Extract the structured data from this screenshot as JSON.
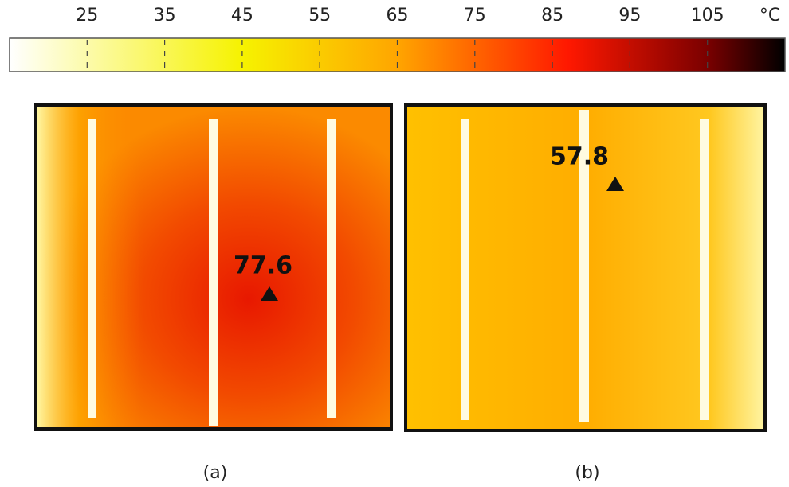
{
  "colorbar": {
    "unit": "°C",
    "range": [
      15,
      115
    ],
    "ticks": [
      25,
      35,
      45,
      55,
      65,
      75,
      85,
      95,
      105
    ]
  },
  "panels": [
    {
      "label": "(a)",
      "annotation": 77.6
    },
    {
      "label": "(b)",
      "annotation": 57.8
    }
  ]
}
